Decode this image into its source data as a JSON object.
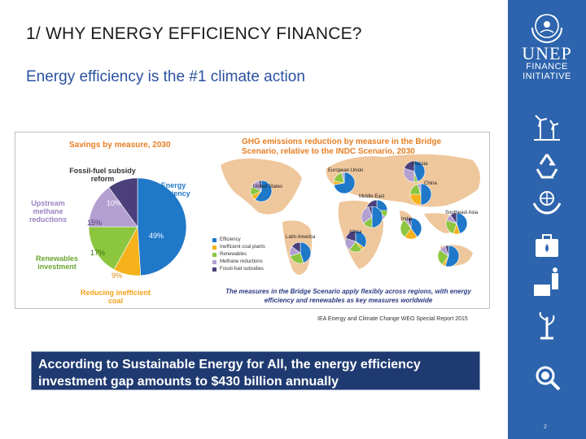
{
  "slide": {
    "title": "1/ WHY ENERGY EFFICIENCY FINANCE?",
    "subtitle": "Energy efficiency is the #1 climate action",
    "source": "IEA Energy and Climate Change WEO Special Report 2015",
    "callout": "According to Sustainable Energy for All, the energy efficiency investment gap amounts to $430 billion annually",
    "page_number": "2"
  },
  "branding": {
    "line1": "UNEP",
    "line2": "FINANCE",
    "line3": "INITIATIVE",
    "accent_color": "#2d64ad"
  },
  "sidebar_icons": [
    "wind-turbine-icon",
    "recycle-icon",
    "hands-globe-icon",
    "briefcase-water-icon",
    "water-drop-icon",
    "plant-icon",
    "magnifier-icon"
  ],
  "chart_data": [
    {
      "type": "pie",
      "title": "Savings by measure, 2030",
      "slices": [
        {
          "label": "Energy efficiency",
          "value": 49,
          "pct_label": "49%",
          "color": "#1f78c8"
        },
        {
          "label": "Reducing inefficient coal",
          "value": 9,
          "pct_label": "9%",
          "color": "#f5b21a"
        },
        {
          "label": "Renewables investment",
          "value": 17,
          "pct_label": "17%",
          "color": "#8cc63f"
        },
        {
          "label": "Upstream methane reductions",
          "value": 15,
          "pct_label": "15%",
          "color": "#b49fd1"
        },
        {
          "label": "Fossil-fuel subsidy reform",
          "value": 10,
          "pct_label": "10%",
          "color": "#4a3f7a"
        }
      ],
      "label_colors": {
        "Energy efficiency": "#1f78c8",
        "Reducing inefficient coal": "#f5a21a",
        "Renewables investment": "#6aa52e",
        "Upstream methane reductions": "#9b83c4",
        "Fossil-fuel subsidy reform": "#333333"
      }
    },
    {
      "type": "pie",
      "title": "GHG emissions reduction by measure in the Bridge Scenario, relative to the INDC Scenario, 2030",
      "legend": [
        "Efficiency",
        "Inefficient coal plants",
        "Renewables",
        "Methane reductions",
        "Fossil-fuel subsidies"
      ],
      "legend_colors": [
        "#1f78c8",
        "#f5b21a",
        "#8cc63f",
        "#b49fd1",
        "#4a3f7a"
      ],
      "regions": [
        {
          "name": "United States",
          "values": [
            60,
            8,
            14,
            14,
            4
          ]
        },
        {
          "name": "European Union",
          "values": [
            72,
            6,
            18,
            4,
            0
          ]
        },
        {
          "name": "Russia",
          "values": [
            45,
            0,
            5,
            30,
            20
          ]
        },
        {
          "name": "China",
          "values": [
            50,
            25,
            20,
            5,
            0
          ]
        },
        {
          "name": "Middle East",
          "values": [
            25,
            0,
            10,
            25,
            40
          ]
        },
        {
          "name": "India",
          "values": [
            40,
            20,
            30,
            5,
            5
          ]
        },
        {
          "name": "Southeast Asia",
          "values": [
            45,
            10,
            25,
            10,
            10
          ]
        },
        {
          "name": "Latin America",
          "values": [
            45,
            0,
            25,
            15,
            15
          ]
        },
        {
          "name": "Africa",
          "values": [
            35,
            5,
            20,
            20,
            20
          ]
        },
        {
          "name": "",
          "values": [
            50,
            0,
            15,
            30,
            5
          ]
        },
        {
          "name": "",
          "values": [
            55,
            5,
            25,
            10,
            5
          ]
        }
      ],
      "note": "The measures in the Bridge Scenario apply flexibly across regions, with energy efficiency and renewables as key measures worldwide"
    }
  ]
}
